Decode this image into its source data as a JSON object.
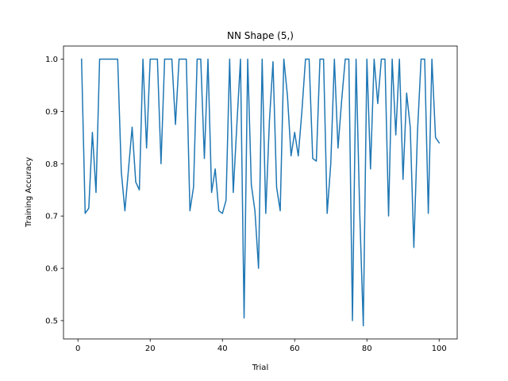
{
  "chart_data": {
    "type": "line",
    "title": "NN Shape (5,)",
    "xlabel": "Trial",
    "ylabel": "Training Accuracy",
    "xlim": [
      -4,
      105
    ],
    "ylim": [
      0.465,
      1.025
    ],
    "xticks": [
      0,
      20,
      40,
      60,
      80,
      100
    ],
    "yticks": [
      0.5,
      0.6,
      0.7,
      0.8,
      0.9,
      1.0
    ],
    "xtick_labels": [
      "0",
      "20",
      "40",
      "60",
      "80",
      "100"
    ],
    "ytick_labels": [
      "0.5",
      "0.6",
      "0.7",
      "0.8",
      "0.9",
      "1.0"
    ],
    "grid": false,
    "legend": "none",
    "series": [
      {
        "color": "#1f77b4",
        "x": [
          1,
          2,
          3,
          4,
          5,
          6,
          7,
          8,
          9,
          10,
          11,
          12,
          13,
          14,
          15,
          16,
          17,
          18,
          19,
          20,
          21,
          22,
          23,
          24,
          25,
          26,
          27,
          28,
          29,
          30,
          31,
          32,
          33,
          34,
          35,
          36,
          37,
          38,
          39,
          40,
          41,
          42,
          43,
          44,
          45,
          46,
          47,
          48,
          49,
          50,
          51,
          52,
          53,
          54,
          55,
          56,
          57,
          58,
          59,
          60,
          61,
          62,
          63,
          64,
          65,
          66,
          67,
          68,
          69,
          70,
          71,
          72,
          73,
          74,
          75,
          76,
          77,
          78,
          79,
          80,
          81,
          82,
          83,
          84,
          85,
          86,
          87,
          88,
          89,
          90,
          91,
          92,
          93,
          94,
          95,
          96,
          97,
          98,
          99,
          100
        ],
        "values": [
          1.0,
          0.705,
          0.715,
          0.86,
          0.745,
          1.0,
          1.0,
          1.0,
          1.0,
          1.0,
          1.0,
          0.785,
          0.71,
          0.79,
          0.87,
          0.765,
          0.75,
          1.0,
          0.83,
          1.0,
          1.0,
          1.0,
          0.8,
          1.0,
          1.0,
          1.0,
          0.875,
          1.0,
          1.0,
          1.0,
          0.71,
          0.755,
          1.0,
          1.0,
          0.81,
          1.0,
          0.745,
          0.79,
          0.71,
          0.705,
          0.73,
          1.0,
          0.745,
          0.875,
          1.0,
          0.505,
          1.0,
          0.76,
          0.71,
          0.6,
          1.0,
          0.705,
          0.88,
          0.995,
          0.755,
          0.71,
          1.0,
          0.93,
          0.815,
          0.86,
          0.815,
          0.9,
          1.0,
          1.0,
          0.81,
          0.805,
          1.0,
          1.0,
          0.705,
          0.8,
          1.0,
          0.83,
          0.92,
          1.0,
          1.0,
          0.5,
          1.0,
          0.71,
          0.49,
          1.0,
          0.79,
          1.0,
          0.915,
          1.0,
          1.0,
          0.7,
          1.0,
          0.855,
          1.0,
          0.77,
          0.935,
          0.87,
          0.64,
          0.86,
          1.0,
          1.0,
          0.705,
          1.0,
          0.85,
          0.84
        ]
      }
    ]
  }
}
